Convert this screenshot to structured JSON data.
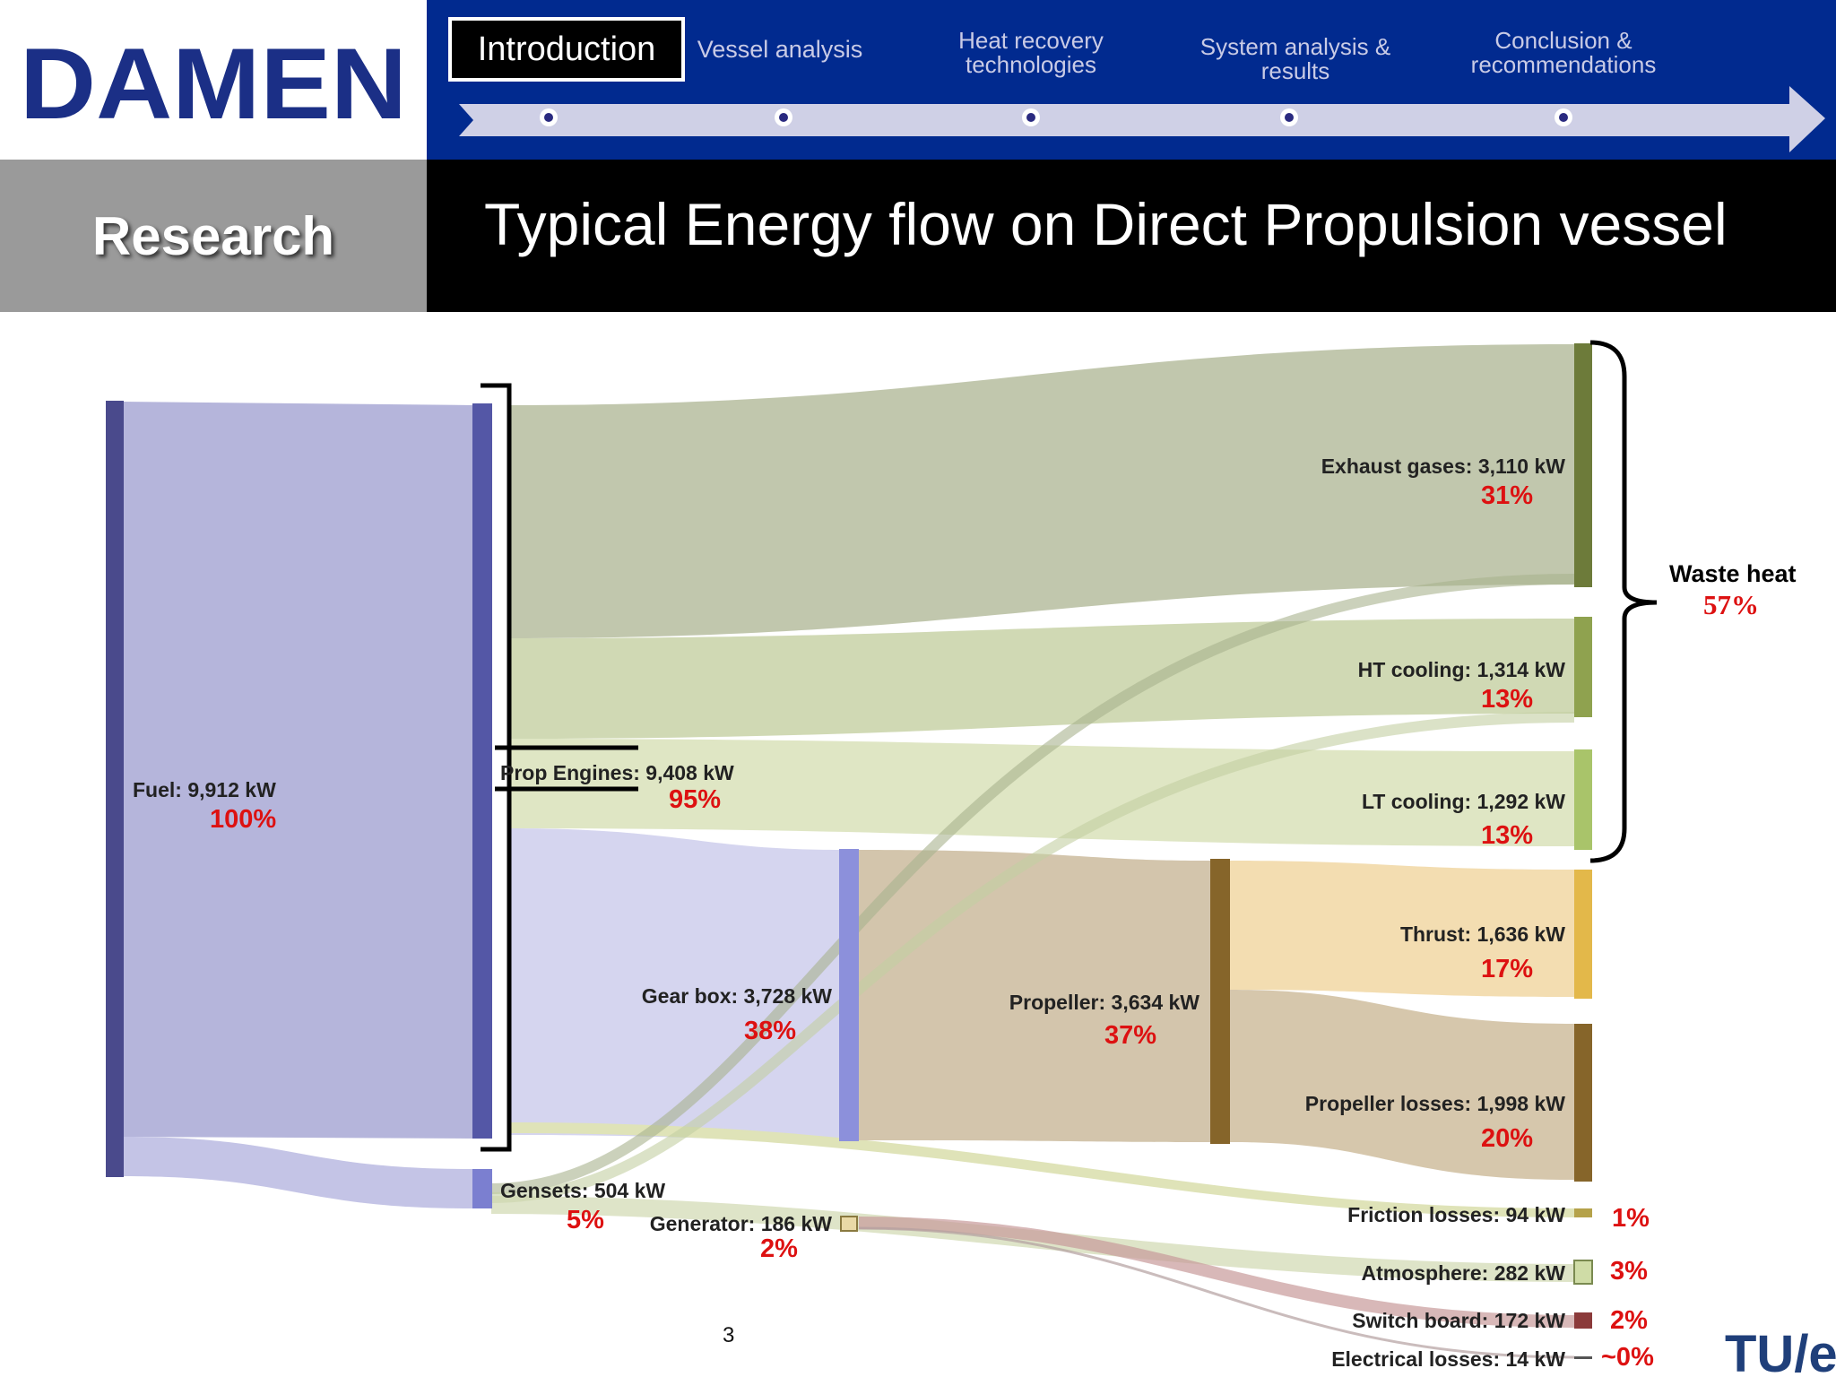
{
  "logo": {
    "text": "DAMEN"
  },
  "nav": {
    "items": [
      {
        "label": "Introduction"
      },
      {
        "label": "Vessel analysis"
      },
      {
        "label": "Heat recovery technologies"
      },
      {
        "label": "System analysis & results"
      },
      {
        "label": "Conclusion & recommendations"
      }
    ]
  },
  "section_label": "Research",
  "title": "Typical Energy flow on Direct Propulsion vessel",
  "page_number": "3",
  "corner_logo": {
    "text": "TU/e"
  },
  "diagram": {
    "nodes": [
      {
        "id": "fuel",
        "label": "Fuel: 9,912 kW",
        "percent": "100%"
      },
      {
        "id": "prop_engines",
        "label": "Prop Engines: 9,408 kW",
        "percent": "95%"
      },
      {
        "id": "gensets",
        "label": "Gensets: 504 kW",
        "percent": "5%"
      },
      {
        "id": "gear_box",
        "label": "Gear box: 3,728 kW",
        "percent": "38%"
      },
      {
        "id": "generator",
        "label": "Generator: 186 kW",
        "percent": "2%"
      },
      {
        "id": "propeller",
        "label": "Propeller: 3,634 kW",
        "percent": "37%"
      },
      {
        "id": "exhaust",
        "label": "Exhaust gases: 3,110 kW",
        "percent": "31%"
      },
      {
        "id": "ht_cooling",
        "label": "HT cooling: 1,314 kW",
        "percent": "13%"
      },
      {
        "id": "lt_cooling",
        "label": "LT cooling: 1,292 kW",
        "percent": "13%"
      },
      {
        "id": "thrust",
        "label": "Thrust: 1,636 kW",
        "percent": "17%"
      },
      {
        "id": "prop_losses",
        "label": "Propeller losses: 1,998 kW",
        "percent": "20%"
      },
      {
        "id": "friction",
        "label": "Friction losses: 94 kW",
        "percent": "1%"
      },
      {
        "id": "atmosphere",
        "label": "Atmosphere: 282 kW",
        "percent": "3%"
      },
      {
        "id": "switch_board",
        "label": "Switch board: 172 kW",
        "percent": "2%"
      },
      {
        "id": "elec_losses",
        "label": "Electrical losses: 14 kW",
        "percent": "~0%"
      }
    ],
    "waste_heat": {
      "label": "Waste heat",
      "percent": "57%"
    },
    "colors": {
      "fuel": "#4a4a8c",
      "engine": "#5457a6",
      "exhaust_node": "#6d7b3a",
      "cooling_node": "#8fa24f",
      "thrust_node": "#e3b84a",
      "propeller_node": "#86652a",
      "percent_text": "#dd1111"
    }
  }
}
